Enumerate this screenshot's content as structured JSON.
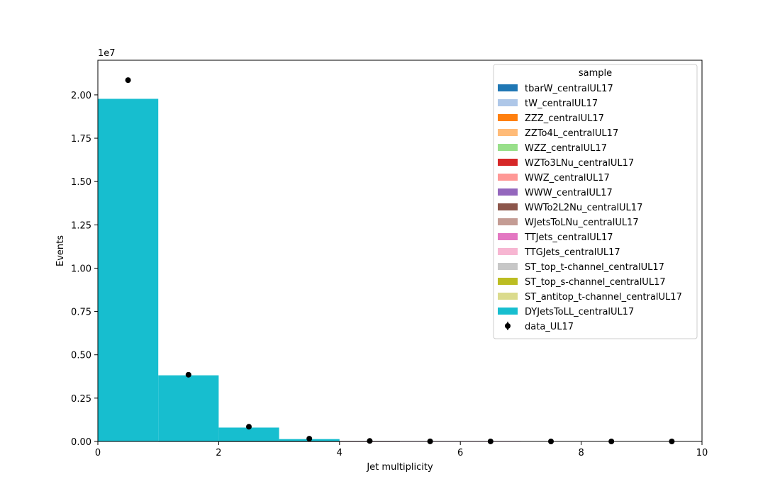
{
  "chart_data": {
    "type": "bar",
    "stacked": true,
    "xlabel": "Jet multiplicity",
    "ylabel": "Events",
    "y_multiplier_label": "1e7",
    "xlim": [
      0,
      10
    ],
    "ylim": [
      0,
      22000000
    ],
    "xticks": [
      0,
      2,
      4,
      6,
      8,
      10
    ],
    "xtick_labels": [
      "0",
      "2",
      "4",
      "6",
      "8",
      "10"
    ],
    "yticks": [
      0,
      2500000,
      5000000,
      7500000,
      10000000,
      12500000,
      15000000,
      17500000,
      20000000
    ],
    "ytick_labels": [
      "0.00",
      "0.25",
      "0.50",
      "0.75",
      "1.00",
      "1.25",
      "1.50",
      "1.75",
      "2.00"
    ],
    "bin_edges": [
      0,
      1,
      2,
      3,
      4,
      5,
      6,
      7,
      8,
      9,
      10
    ],
    "grid": false,
    "legend": {
      "title": "sample",
      "placement": "top-right"
    },
    "series": [
      {
        "name": "tbarW_centralUL17",
        "color": "#1f77b4",
        "values": [
          2000,
          1000,
          300,
          80,
          20,
          0,
          0,
          0,
          0,
          0
        ]
      },
      {
        "name": "tW_centralUL17",
        "color": "#aec7e8",
        "values": [
          2000,
          1000,
          300,
          80,
          20,
          0,
          0,
          0,
          0,
          0
        ]
      },
      {
        "name": "ZZZ_centralUL17",
        "color": "#ff7f0e",
        "values": [
          0,
          0,
          0,
          0,
          0,
          0,
          0,
          0,
          0,
          0
        ]
      },
      {
        "name": "ZZTo4L_centralUL17",
        "color": "#ffbb78",
        "values": [
          1000,
          200,
          50,
          10,
          0,
          0,
          0,
          0,
          0,
          0
        ]
      },
      {
        "name": "WZZ_centralUL17",
        "color": "#98df8a",
        "values": [
          0,
          0,
          0,
          0,
          0,
          0,
          0,
          0,
          0,
          0
        ]
      },
      {
        "name": "WZTo3LNu_centralUL17",
        "color": "#d62728",
        "values": [
          3000,
          1000,
          300,
          50,
          10,
          0,
          0,
          0,
          0,
          0
        ]
      },
      {
        "name": "WWZ_centralUL17",
        "color": "#ff9896",
        "values": [
          0,
          0,
          0,
          0,
          0,
          0,
          0,
          0,
          0,
          0
        ]
      },
      {
        "name": "WWW_centralUL17",
        "color": "#9467bd",
        "values": [
          0,
          0,
          0,
          0,
          0,
          0,
          0,
          0,
          0,
          0
        ]
      },
      {
        "name": "WWTo2L2Nu_centralUL17",
        "color": "#8c564b",
        "values": [
          5000,
          1500,
          300,
          50,
          10,
          0,
          0,
          0,
          0,
          0
        ]
      },
      {
        "name": "WJetsToLNu_centralUL17",
        "color": "#c49c94",
        "values": [
          3000,
          1000,
          300,
          50,
          10,
          0,
          0,
          0,
          0,
          0
        ]
      },
      {
        "name": "TTJets_centralUL17",
        "color": "#e377c2",
        "values": [
          5000,
          10000,
          8000,
          5000,
          2000,
          500,
          100,
          0,
          0,
          0
        ]
      },
      {
        "name": "TTGJets_centralUL17",
        "color": "#f7b6d2",
        "values": [
          0,
          0,
          0,
          0,
          0,
          0,
          0,
          0,
          0,
          0
        ]
      },
      {
        "name": "ST_top_t-channel_centralUL17",
        "color": "#c7c7c7",
        "values": [
          1000,
          500,
          200,
          50,
          10,
          0,
          0,
          0,
          0,
          0
        ]
      },
      {
        "name": "ST_top_s-channel_centralUL17",
        "color": "#bcbd22",
        "values": [
          0,
          0,
          0,
          0,
          0,
          0,
          0,
          0,
          0,
          0
        ]
      },
      {
        "name": "ST_antitop_t-channel_centralUL17",
        "color": "#dbdb8d",
        "values": [
          500,
          300,
          100,
          30,
          0,
          0,
          0,
          0,
          0,
          0
        ]
      },
      {
        "name": "DYJetsToLL_centralUL17",
        "color": "#17becf",
        "values": [
          19750000,
          3800000,
          790000,
          130000,
          20000,
          3000,
          0,
          0,
          0,
          0
        ]
      }
    ],
    "data_points": {
      "name": "data_UL17",
      "color": "#000000",
      "x": [
        0.5,
        1.5,
        2.5,
        3.5,
        4.5,
        5.5,
        6.5,
        7.5,
        8.5,
        9.5
      ],
      "y": [
        20850000,
        3850000,
        850000,
        160000,
        30000,
        5000,
        1000,
        200,
        50,
        10
      ]
    }
  }
}
